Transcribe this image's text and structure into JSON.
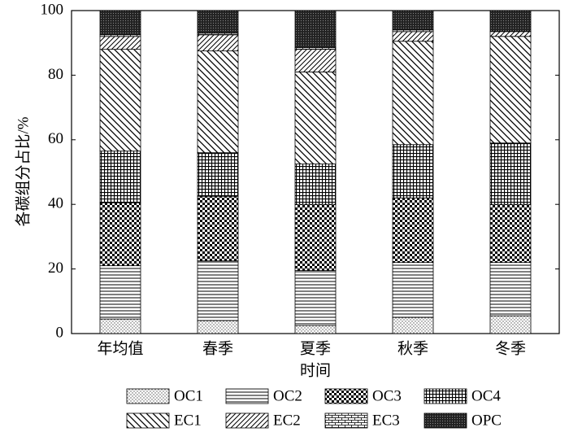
{
  "chart_data": {
    "type": "stacked_bar",
    "ylabel": "各碳组分占比/%",
    "xlabel": "时间",
    "categories": [
      "年均值",
      "春季",
      "夏季",
      "秋季",
      "冬季"
    ],
    "series": [
      {
        "name": "OC1",
        "pattern": "dots",
        "values": [
          4.5,
          4,
          2.5,
          5,
          5.5
        ]
      },
      {
        "name": "OC2",
        "pattern": "hlines",
        "values": [
          16.5,
          18.5,
          17,
          17,
          16.5
        ]
      },
      {
        "name": "OC3",
        "pattern": "checker",
        "values": [
          19.5,
          20,
          20.5,
          20,
          18
        ]
      },
      {
        "name": "OC4",
        "pattern": "grid",
        "values": [
          16,
          13.5,
          12.5,
          16.5,
          19
        ]
      },
      {
        "name": "EC1",
        "pattern": "backslash",
        "values": [
          31.5,
          31.5,
          28.5,
          32,
          33
        ]
      },
      {
        "name": "EC2",
        "pattern": "slash",
        "values": [
          4,
          5,
          7,
          3,
          1.5
        ]
      },
      {
        "name": "EC3",
        "pattern": "brick",
        "values": [
          0.5,
          0.5,
          0.5,
          0.5,
          0
        ]
      },
      {
        "name": "OPC",
        "pattern": "dense",
        "values": [
          7.5,
          7,
          11.5,
          6,
          6.5
        ]
      }
    ],
    "ylim": [
      0,
      100
    ],
    "yticks": [
      0,
      20,
      40,
      60,
      80,
      100
    ]
  }
}
